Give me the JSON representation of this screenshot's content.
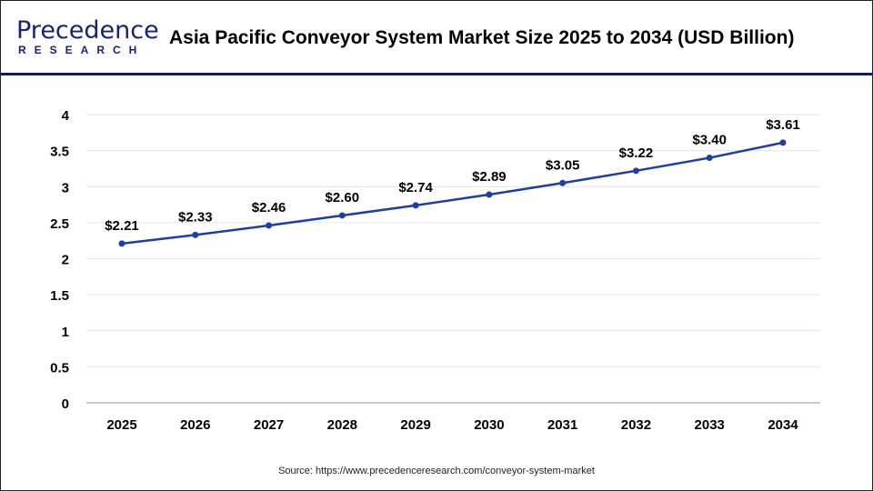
{
  "header": {
    "logo_main": "Precedence",
    "logo_sub": "RESEARCH",
    "title": "Asia Pacific Conveyor System Market Size 2025 to 2034 (USD Billion)"
  },
  "source": "Source: https://www.precedenceresearch.com/conveyor-system-market",
  "colors": {
    "line": "#1f3f9e",
    "header_rule": "#141a4a",
    "logo": "#1b2370"
  },
  "chart_data": {
    "type": "line",
    "title": "Asia Pacific Conveyor System Market Size 2025 to 2034 (USD Billion)",
    "xlabel": "",
    "ylabel": "",
    "categories": [
      "2025",
      "2026",
      "2027",
      "2028",
      "2029",
      "2030",
      "2031",
      "2032",
      "2033",
      "2034"
    ],
    "values": [
      2.21,
      2.33,
      2.46,
      2.6,
      2.74,
      2.89,
      3.05,
      3.22,
      3.4,
      3.61
    ],
    "data_labels": [
      "$2.21",
      "$2.33",
      "$2.46",
      "$2.60",
      "$2.74",
      "$2.89",
      "$3.05",
      "$3.22",
      "$3.40",
      "$3.61"
    ],
    "ylim": [
      0,
      4
    ],
    "yticks": [
      "0",
      "0.5",
      "1",
      "1.5",
      "2",
      "2.5",
      "3",
      "3.5",
      "4"
    ],
    "grid": true,
    "legend": "none"
  }
}
